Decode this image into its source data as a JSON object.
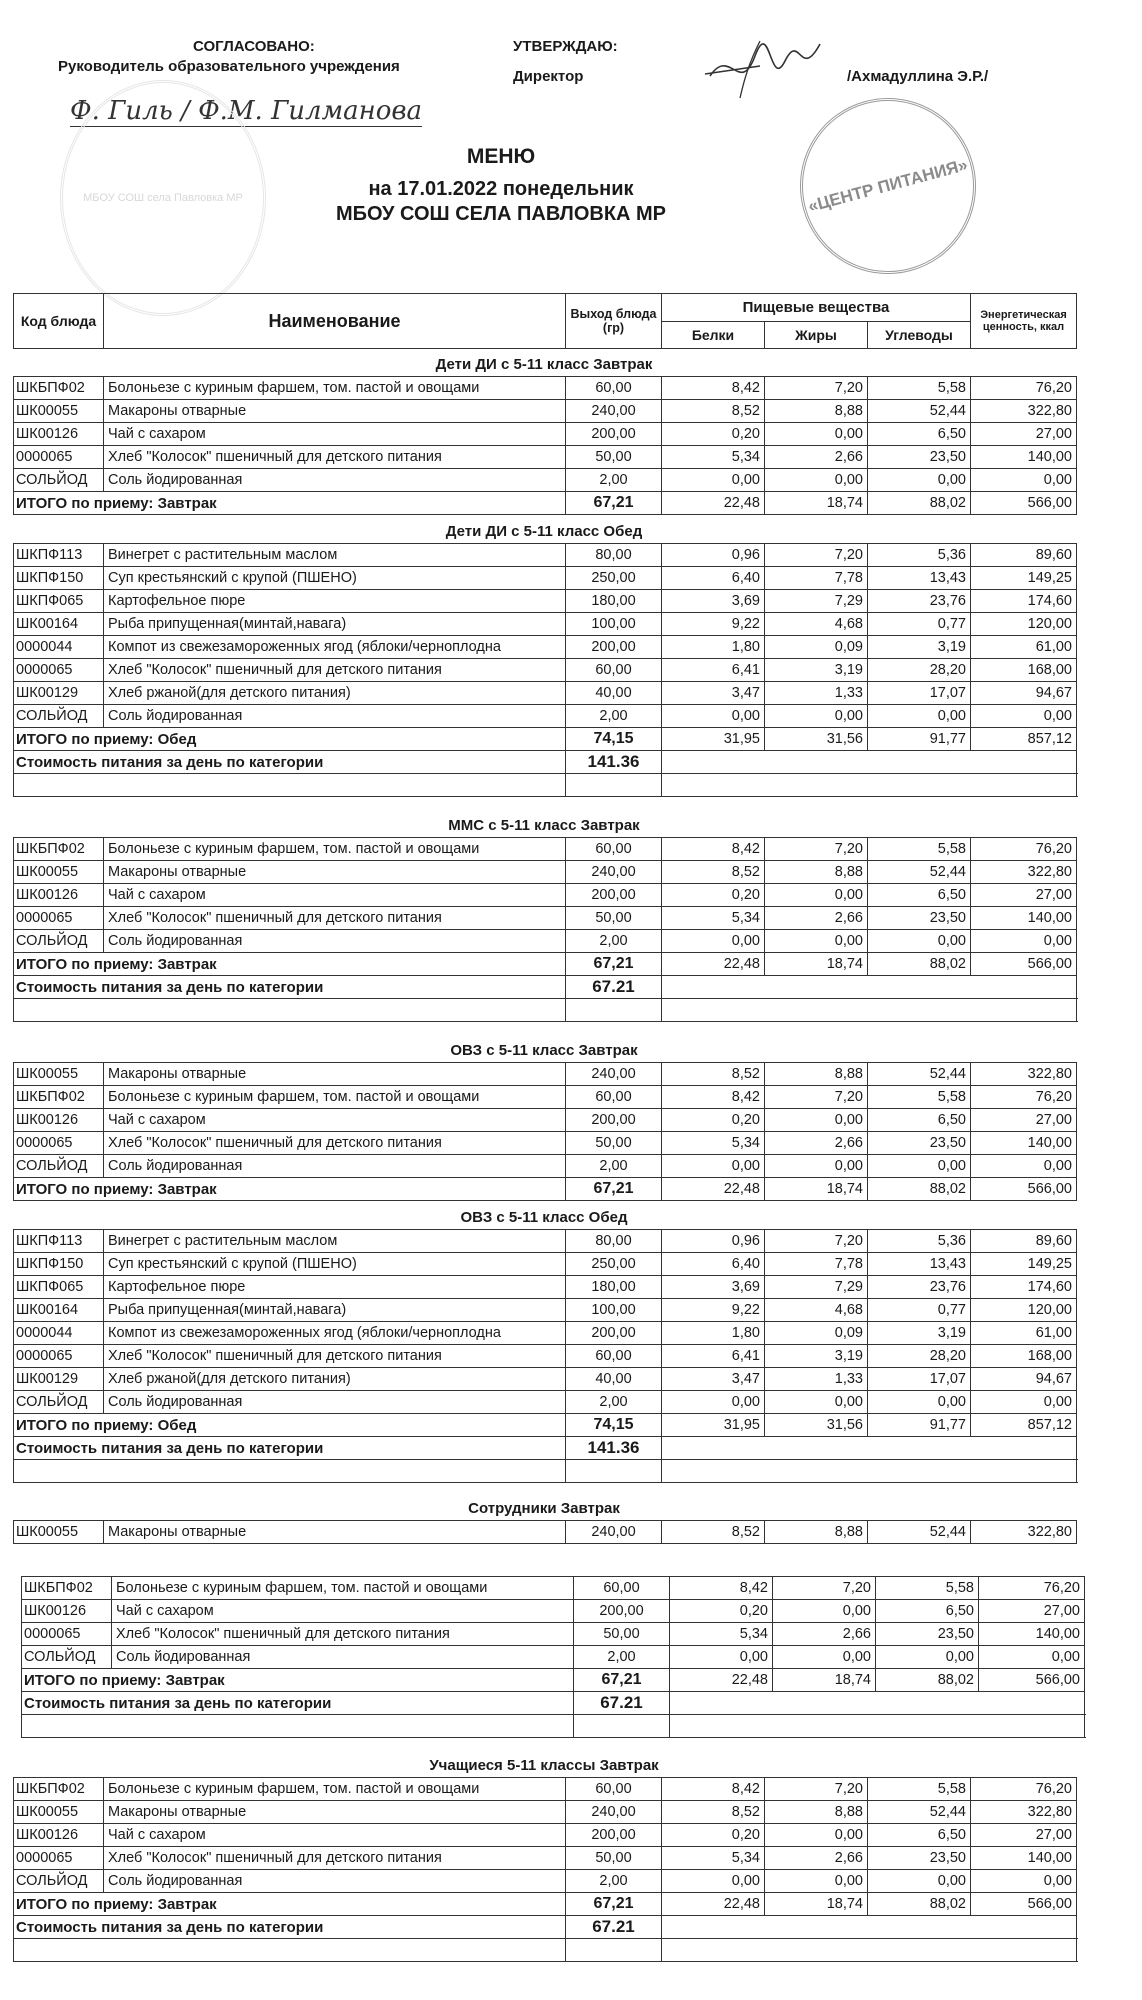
{
  "approval": {
    "agreed_label": "СОГЛАСОВАНО:",
    "agreed_role": "Руководитель образовательного учреждения",
    "agreed_signature": "Ф. Гиль / Ф.М. Гилманова",
    "approve_label": "УТВЕРЖДАЮ:",
    "approve_role": "Директор",
    "approve_name": "/Ахмадуллина Э.Р./",
    "left_stamp_text": "МБОУ СОШ села Павловка МР",
    "right_stamp_text": "«ЦЕНТР ПИТАНИЯ»"
  },
  "heading": {
    "title": "МЕНЮ",
    "date_line": "на 17.01.2022  понедельник",
    "school": "МБОУ СОШ СЕЛА ПАВЛОВКА МР"
  },
  "table_header": {
    "code": "Код блюда",
    "name": "Наименование",
    "yield": "Выход блюда (гр)",
    "nutrients": "Пищевые вещества",
    "protein": "Белки",
    "fat": "Жиры",
    "carbs": "Углеводы",
    "energy": "Энергетическая ценность, ккал"
  },
  "sections": [
    {
      "title": "Дети ДИ с 5-11 класс Завтрак",
      "rows": [
        [
          "ШКБПФ02",
          "Болоньезе с куриным фаршем, том. пастой и овощами",
          "60,00",
          "8,42",
          "7,20",
          "5,58",
          "76,20"
        ],
        [
          "ШК00055",
          "Макароны отварные",
          "240,00",
          "8,52",
          "8,88",
          "52,44",
          "322,80"
        ],
        [
          "ШК00126",
          "Чай с сахаром",
          "200,00",
          "0,20",
          "0,00",
          "6,50",
          "27,00"
        ],
        [
          "0000065",
          "Хлеб \"Колосок\" пшеничный для детского питания",
          "50,00",
          "5,34",
          "2,66",
          "23,50",
          "140,00"
        ],
        [
          "СОЛЬЙОД",
          "Соль йодированная",
          "2,00",
          "0,00",
          "0,00",
          "0,00",
          "0,00"
        ]
      ],
      "total": [
        "ИТОГО по приему: Завтрак",
        "67,21",
        "22,48",
        "18,74",
        "88,02",
        "566,00"
      ]
    },
    {
      "title": "Дети ДИ с 5-11 класс Обед",
      "rows": [
        [
          "ШКПФ113",
          "Винегрет с растительным маслом",
          "80,00",
          "0,96",
          "7,20",
          "5,36",
          "89,60"
        ],
        [
          "ШКПФ150",
          "Суп крестьянский с крупой (ПШЕНО)",
          "250,00",
          "6,40",
          "7,78",
          "13,43",
          "149,25"
        ],
        [
          "ШКПФ065",
          "Картофельное пюре",
          "180,00",
          "3,69",
          "7,29",
          "23,76",
          "174,60"
        ],
        [
          "ШК00164",
          "Рыба припущенная(минтай,навага)",
          "100,00",
          "9,22",
          "4,68",
          "0,77",
          "120,00"
        ],
        [
          "0000044",
          "Компот из свежезамороженных ягод (яблоки/черноплодна",
          "200,00",
          "1,80",
          "0,09",
          "3,19",
          "61,00"
        ],
        [
          "0000065",
          "Хлеб \"Колосок\" пшеничный для детского питания",
          "60,00",
          "6,41",
          "3,19",
          "28,20",
          "168,00"
        ],
        [
          "ШК00129",
          "Хлеб ржаной(для детского питания)",
          "40,00",
          "3,47",
          "1,33",
          "17,07",
          "94,67"
        ],
        [
          "СОЛЬЙОД",
          "Соль йодированная",
          "2,00",
          "0,00",
          "0,00",
          "0,00",
          "0,00"
        ]
      ],
      "total": [
        "ИТОГО по приему: Обед",
        "74,15",
        "31,95",
        "31,56",
        "91,77",
        "857,12"
      ],
      "cost": [
        "Стоимость питания за день по категории",
        "141.36"
      ]
    },
    {
      "title": "ММС с 5-11 класс Завтрак",
      "rows": [
        [
          "ШКБПФ02",
          "Болоньезе с куриным фаршем, том. пастой и овощами",
          "60,00",
          "8,42",
          "7,20",
          "5,58",
          "76,20"
        ],
        [
          "ШК00055",
          "Макароны отварные",
          "240,00",
          "8,52",
          "8,88",
          "52,44",
          "322,80"
        ],
        [
          "ШК00126",
          "Чай с сахаром",
          "200,00",
          "0,20",
          "0,00",
          "6,50",
          "27,00"
        ],
        [
          "0000065",
          "Хлеб \"Колосок\" пшеничный для детского питания",
          "50,00",
          "5,34",
          "2,66",
          "23,50",
          "140,00"
        ],
        [
          "СОЛЬЙОД",
          "Соль йодированная",
          "2,00",
          "0,00",
          "0,00",
          "0,00",
          "0,00"
        ]
      ],
      "total": [
        "ИТОГО по приему: Завтрак",
        "67,21",
        "22,48",
        "18,74",
        "88,02",
        "566,00"
      ],
      "cost": [
        "Стоимость питания за день по категории",
        "67.21"
      ]
    },
    {
      "title": "ОВЗ с 5-11 класс Завтрак",
      "rows": [
        [
          "ШК00055",
          "Макароны отварные",
          "240,00",
          "8,52",
          "8,88",
          "52,44",
          "322,80"
        ],
        [
          "ШКБПФ02",
          "Болоньезе с куриным фаршем, том. пастой и овощами",
          "60,00",
          "8,42",
          "7,20",
          "5,58",
          "76,20"
        ],
        [
          "ШК00126",
          "Чай с сахаром",
          "200,00",
          "0,20",
          "0,00",
          "6,50",
          "27,00"
        ],
        [
          "0000065",
          "Хлеб \"Колосок\" пшеничный для детского питания",
          "50,00",
          "5,34",
          "2,66",
          "23,50",
          "140,00"
        ],
        [
          "СОЛЬЙОД",
          "Соль йодированная",
          "2,00",
          "0,00",
          "0,00",
          "0,00",
          "0,00"
        ]
      ],
      "total": [
        "ИТОГО по приему: Завтрак",
        "67,21",
        "22,48",
        "18,74",
        "88,02",
        "566,00"
      ]
    },
    {
      "title": "ОВЗ с 5-11 класс Обед",
      "rows": [
        [
          "ШКПФ113",
          "Винегрет с растительным маслом",
          "80,00",
          "0,96",
          "7,20",
          "5,36",
          "89,60"
        ],
        [
          "ШКПФ150",
          "Суп крестьянский с крупой (ПШЕНО)",
          "250,00",
          "6,40",
          "7,78",
          "13,43",
          "149,25"
        ],
        [
          "ШКПФ065",
          "Картофельное пюре",
          "180,00",
          "3,69",
          "7,29",
          "23,76",
          "174,60"
        ],
        [
          "ШК00164",
          "Рыба припущенная(минтай,навага)",
          "100,00",
          "9,22",
          "4,68",
          "0,77",
          "120,00"
        ],
        [
          "0000044",
          "Компот из свежезамороженных ягод (яблоки/черноплодна",
          "200,00",
          "1,80",
          "0,09",
          "3,19",
          "61,00"
        ],
        [
          "0000065",
          "Хлеб \"Колосок\" пшеничный для детского питания",
          "60,00",
          "6,41",
          "3,19",
          "28,20",
          "168,00"
        ],
        [
          "ШК00129",
          "Хлеб ржаной(для детского питания)",
          "40,00",
          "3,47",
          "1,33",
          "17,07",
          "94,67"
        ],
        [
          "СОЛЬЙОД",
          "Соль йодированная",
          "2,00",
          "0,00",
          "0,00",
          "0,00",
          "0,00"
        ]
      ],
      "total": [
        "ИТОГО по приему: Обед",
        "74,15",
        "31,95",
        "31,56",
        "91,77",
        "857,12"
      ],
      "cost": [
        "Стоимость питания за день по категории",
        "141.36"
      ]
    },
    {
      "title": "Сотрудники Завтрак",
      "rows": [
        [
          "ШК00055",
          "Макароны отварные",
          "240,00",
          "8,52",
          "8,88",
          "52,44",
          "322,80"
        ]
      ]
    },
    {
      "title": "",
      "rows": [
        [
          "ШКБПФ02",
          "Болоньезе с куриным фаршем, том. пастой и овощами",
          "60,00",
          "8,42",
          "7,20",
          "5,58",
          "76,20"
        ],
        [
          "ШК00126",
          "Чай с сахаром",
          "200,00",
          "0,20",
          "0,00",
          "6,50",
          "27,00"
        ],
        [
          "0000065",
          "Хлеб \"Колосок\" пшеничный для детского питания",
          "50,00",
          "5,34",
          "2,66",
          "23,50",
          "140,00"
        ],
        [
          "СОЛЬЙОД",
          "Соль йодированная",
          "2,00",
          "0,00",
          "0,00",
          "0,00",
          "0,00"
        ]
      ],
      "total": [
        "ИТОГО по приему: Завтрак",
        "67,21",
        "22,48",
        "18,74",
        "88,02",
        "566,00"
      ],
      "cost": [
        "Стоимость питания за день по категории",
        "67.21"
      ]
    },
    {
      "title": "Учащиеся 5-11 классы Завтрак",
      "rows": [
        [
          "ШКБПФ02",
          "Болоньезе с куриным фаршем, том. пастой и овощами",
          "60,00",
          "8,42",
          "7,20",
          "5,58",
          "76,20"
        ],
        [
          "ШК00055",
          "Макароны отварные",
          "240,00",
          "8,52",
          "8,88",
          "52,44",
          "322,80"
        ],
        [
          "ШК00126",
          "Чай с сахаром",
          "200,00",
          "0,20",
          "0,00",
          "6,50",
          "27,00"
        ],
        [
          "0000065",
          "Хлеб \"Колосок\" пшеничный для детского питания",
          "50,00",
          "5,34",
          "2,66",
          "23,50",
          "140,00"
        ],
        [
          "СОЛЬЙОД",
          "Соль йодированная",
          "2,00",
          "0,00",
          "0,00",
          "0,00",
          "0,00"
        ]
      ],
      "total": [
        "ИТОГО по приему: Завтрак",
        "67,21",
        "22,48",
        "18,74",
        "88,02",
        "566,00"
      ],
      "cost": [
        "Стоимость питания за день по категории",
        "67.21"
      ]
    }
  ]
}
